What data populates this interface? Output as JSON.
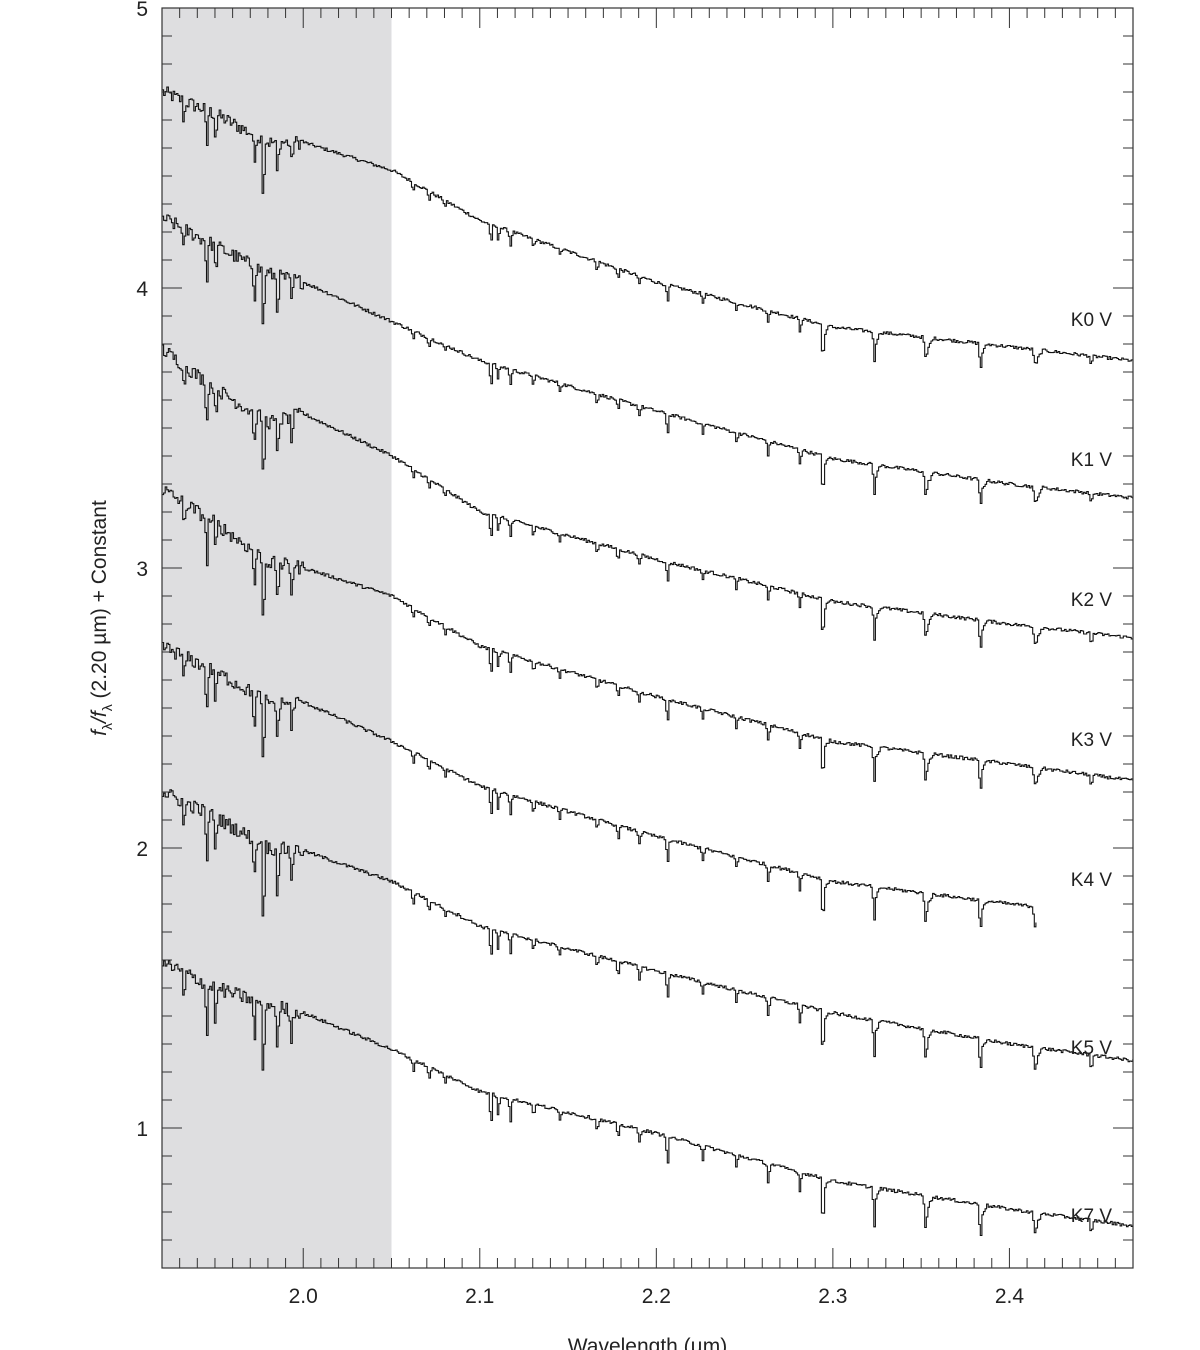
{
  "chart_data": {
    "type": "line",
    "title": "",
    "xlabel": "Wavelength (µm)",
    "ylabel": {
      "f1": "f",
      "s1": "λ",
      "slash": "/f",
      "s2": "λ",
      "rest": " (2.20 µm) + Constant"
    },
    "xlim": [
      1.92,
      2.47
    ],
    "ylim": [
      0.5,
      5.0
    ],
    "x_ticks": [
      {
        "value": 2.0,
        "label": "2.0"
      },
      {
        "value": 2.1,
        "label": "2.1"
      },
      {
        "value": 2.2,
        "label": "2.2"
      },
      {
        "value": 2.3,
        "label": "2.3"
      },
      {
        "value": 2.4,
        "label": "2.4"
      }
    ],
    "y_ticks": [
      {
        "value": 1,
        "label": "1"
      },
      {
        "value": 2,
        "label": "2"
      },
      {
        "value": 3,
        "label": "3"
      },
      {
        "value": 4,
        "label": "4"
      },
      {
        "value": 5,
        "label": "5"
      }
    ],
    "shaded_region": {
      "x_start": 1.92,
      "x_end": 2.05,
      "color": "#dedee0"
    },
    "grid": false,
    "line_color": "#111111",
    "series": [
      {
        "name": "K0 V",
        "label_y": 3.89,
        "x": [
          1.92,
          1.95,
          1.98,
          2.0,
          2.05,
          2.1,
          2.2,
          2.3,
          2.4,
          2.47
        ],
        "y": [
          4.7,
          4.62,
          4.52,
          4.52,
          4.42,
          4.24,
          4.02,
          3.86,
          3.79,
          3.74
        ]
      },
      {
        "name": "K1 V",
        "label_y": 3.39,
        "x": [
          1.92,
          1.95,
          1.98,
          2.0,
          2.05,
          2.1,
          2.2,
          2.3,
          2.4,
          2.47
        ],
        "y": [
          4.25,
          4.15,
          4.05,
          4.02,
          3.88,
          3.74,
          3.56,
          3.39,
          3.3,
          3.25
        ],
        "x_end": 2.47
      },
      {
        "name": "K2 V",
        "label_y": 2.89,
        "x": [
          1.92,
          1.95,
          1.98,
          2.0,
          2.05,
          2.1,
          2.2,
          2.3,
          2.4,
          2.47
        ],
        "y": [
          3.78,
          3.64,
          3.52,
          3.55,
          3.4,
          3.2,
          3.03,
          2.88,
          2.8,
          2.75
        ]
      },
      {
        "name": "K3 V",
        "label_y": 2.39,
        "x": [
          1.92,
          1.95,
          1.98,
          2.0,
          2.05,
          2.1,
          2.2,
          2.3,
          2.4,
          2.47
        ],
        "y": [
          3.28,
          3.16,
          3.02,
          3.0,
          2.9,
          2.72,
          2.54,
          2.38,
          2.3,
          2.24
        ]
      },
      {
        "name": "K4 V",
        "label_y": 1.89,
        "x": [
          1.92,
          1.95,
          1.98,
          2.0,
          2.05,
          2.1,
          2.2,
          2.3,
          2.4,
          2.415
        ],
        "y": [
          2.72,
          2.63,
          2.52,
          2.52,
          2.38,
          2.22,
          2.04,
          1.88,
          1.8,
          1.79
        ]
      },
      {
        "name": "K5 V",
        "label_y": 1.29,
        "x": [
          1.92,
          1.95,
          1.98,
          2.0,
          2.05,
          2.1,
          2.2,
          2.3,
          2.4,
          2.47
        ],
        "y": [
          2.2,
          2.11,
          2.0,
          1.99,
          1.88,
          1.72,
          1.56,
          1.41,
          1.3,
          1.24
        ]
      },
      {
        "name": "K7 V",
        "label_y": 0.69,
        "x": [
          1.92,
          1.95,
          1.98,
          2.0,
          2.05,
          2.1,
          2.2,
          2.3,
          2.4,
          2.47
        ],
        "y": [
          1.59,
          1.5,
          1.44,
          1.41,
          1.28,
          1.13,
          0.98,
          0.81,
          0.71,
          0.65
        ]
      }
    ]
  }
}
